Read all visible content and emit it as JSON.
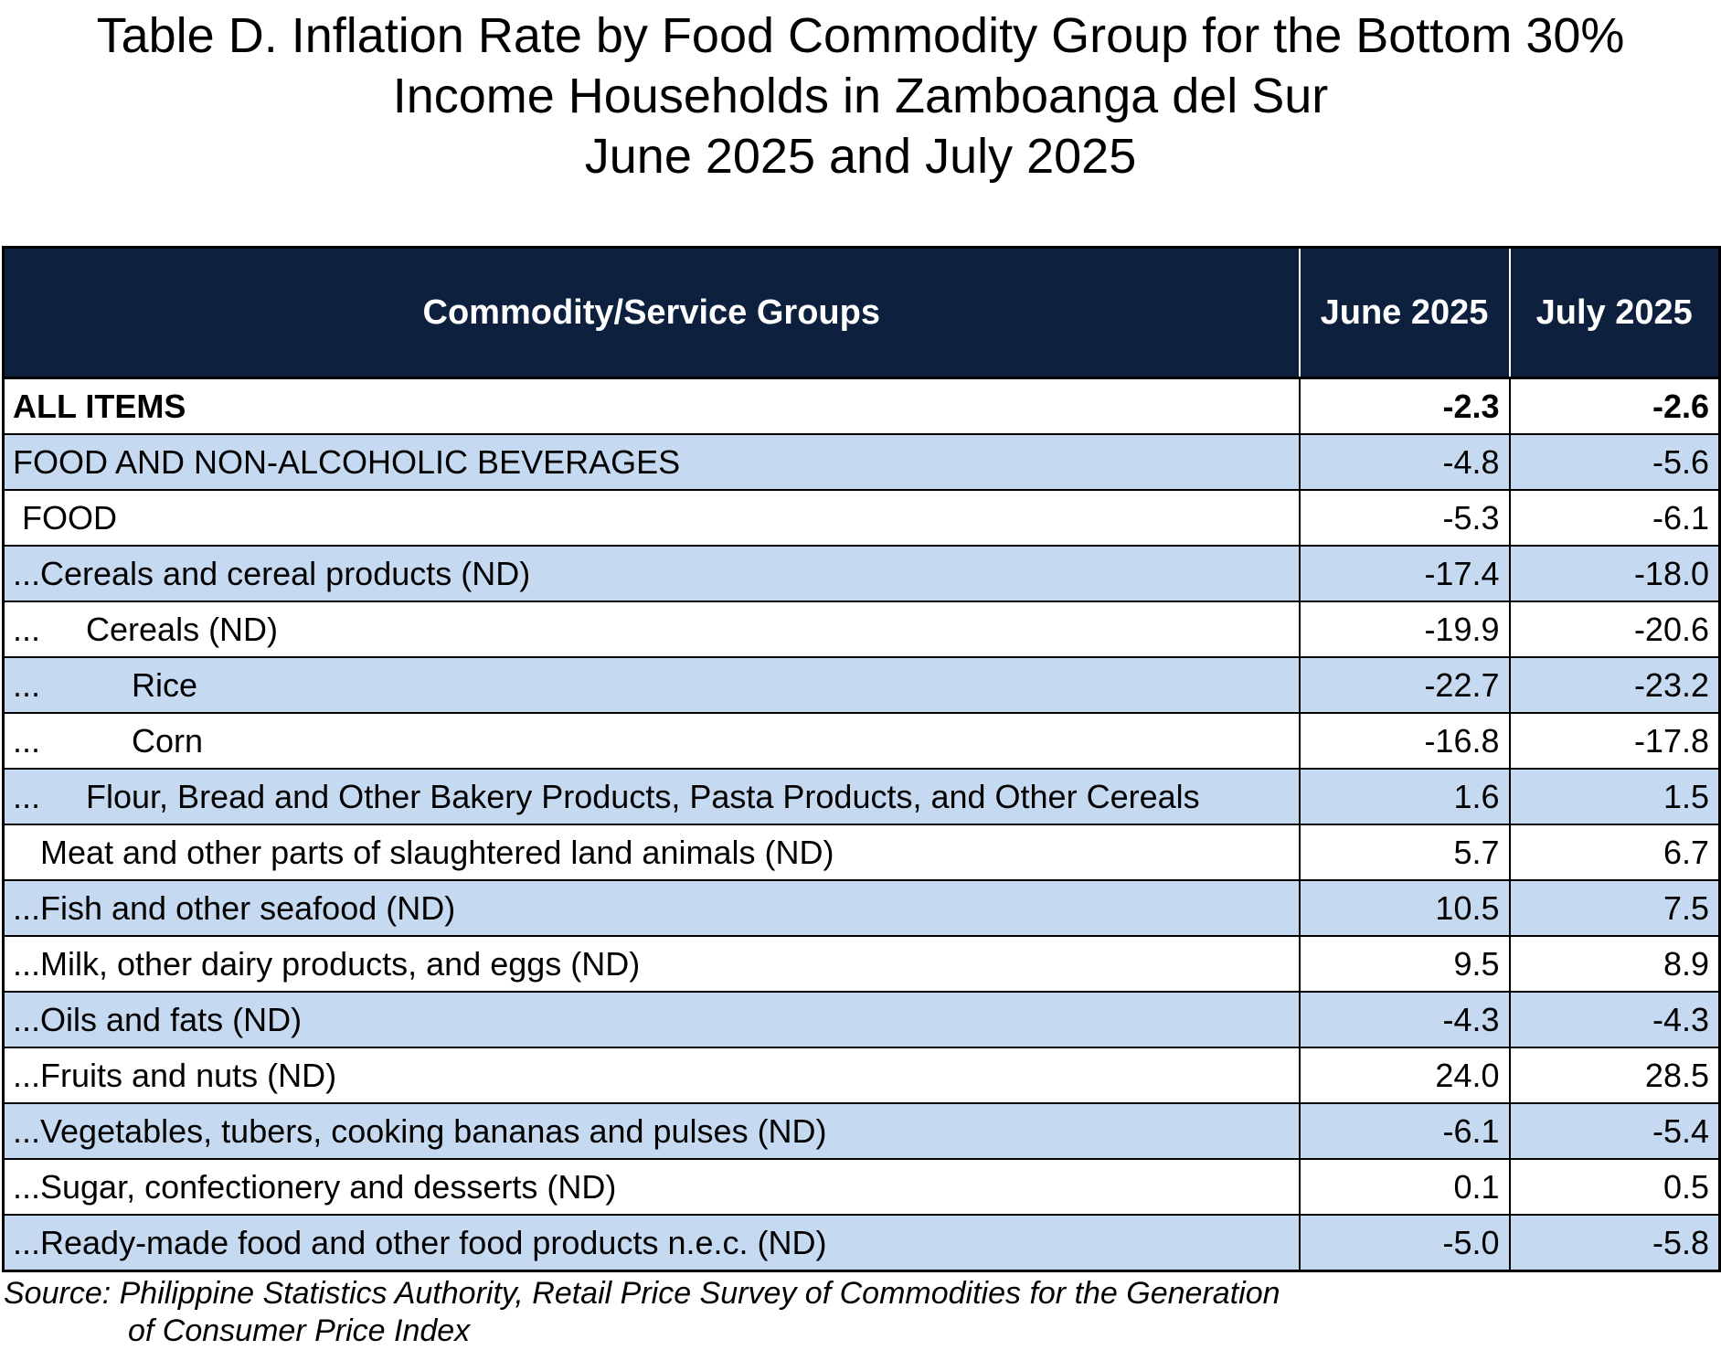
{
  "title": {
    "line1": "Table D. Inflation Rate by Food Commodity Group for the Bottom 30%",
    "line2": "Income Households in Zamboanga del Sur",
    "line3": "June 2025 and July 2025"
  },
  "table": {
    "headers": [
      "Commodity/Service Groups",
      "June 2025",
      "July 2025"
    ],
    "rows": [
      {
        "label": "ALL ITEMS",
        "june": "-2.3",
        "july": "-2.6"
      },
      {
        "label": "FOOD AND NON-ALCOHOLIC BEVERAGES",
        "june": "-4.8",
        "july": "-5.6"
      },
      {
        "label": " FOOD",
        "june": "-5.3",
        "july": "-6.1"
      },
      {
        "label": "...Cereals and cereal products (ND)",
        "june": "-17.4",
        "july": "-18.0"
      },
      {
        "label": "...     Cereals (ND)",
        "june": "-19.9",
        "july": "-20.6"
      },
      {
        "label": "...          Rice",
        "june": "-22.7",
        "july": "-23.2"
      },
      {
        "label": "...          Corn",
        "june": "-16.8",
        "july": "-17.8"
      },
      {
        "label": "...     Flour, Bread and Other Bakery Products, Pasta Products, and Other Cereals",
        "june": "1.6",
        "july": "1.5"
      },
      {
        "label": "   Meat and other parts of slaughtered land animals (ND)",
        "june": "5.7",
        "july": "6.7"
      },
      {
        "label": "...Fish and other seafood (ND)",
        "june": "10.5",
        "july": "7.5"
      },
      {
        "label": "...Milk, other dairy products, and eggs (ND)",
        "june": "9.5",
        "july": "8.9"
      },
      {
        "label": "...Oils and fats (ND)",
        "june": "-4.3",
        "july": "-4.3"
      },
      {
        "label": "...Fruits and nuts (ND)",
        "june": "24.0",
        "july": "28.5"
      },
      {
        "label": "...Vegetables, tubers, cooking bananas and pulses (ND)",
        "june": "-6.1",
        "july": "-5.4"
      },
      {
        "label": "...Sugar, confectionery and desserts (ND)",
        "june": "0.1",
        "july": "0.5"
      },
      {
        "label": "...Ready-made food and other food products n.e.c. (ND)",
        "june": "-5.0",
        "july": "-5.8"
      }
    ]
  },
  "source": {
    "line1": "Source: Philippine Statistics Authority, Retail Price Survey of Commodities for the Generation",
    "line2": "of Consumer Price Index"
  },
  "colors": {
    "header_bg": "#0d213f",
    "header_text": "#ffffff",
    "row_shade": "#c5d9f1",
    "row_plain": "#ffffff"
  }
}
